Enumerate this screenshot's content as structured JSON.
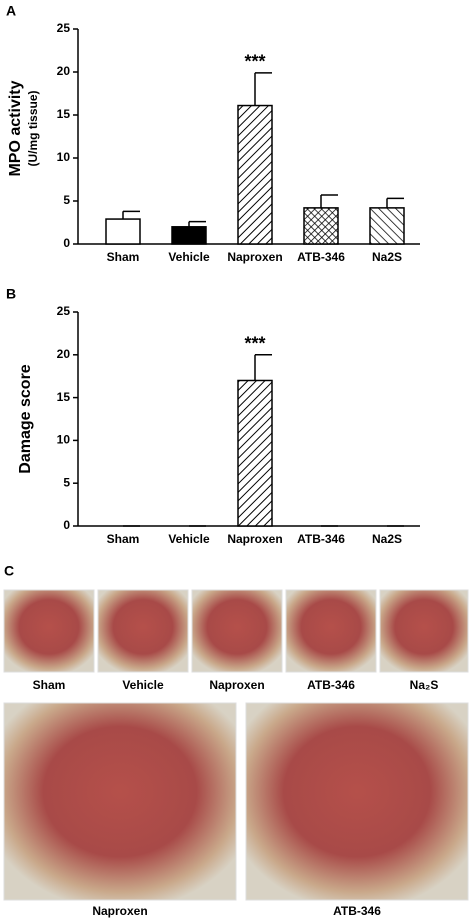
{
  "chart_data": [
    {
      "type": "bar",
      "panel": "A",
      "y_label": "MPO activity",
      "y_sublabel": "(U/mg tissue)",
      "categories": [
        "Sham",
        "Vehicle",
        "Naproxen",
        "ATB-346",
        "Na2S"
      ],
      "values": [
        2.9,
        2.0,
        16.1,
        4.2,
        4.2
      ],
      "errors": [
        0.9,
        0.6,
        3.8,
        1.5,
        1.1
      ],
      "fills": [
        "white",
        "black",
        "hatch-right",
        "crosshatch",
        "hatch-left"
      ],
      "ylim": [
        0,
        25
      ],
      "yticks": [
        0,
        5,
        10,
        15,
        20,
        25
      ],
      "annotations": [
        {
          "text": "***",
          "x": "Naproxen"
        }
      ]
    },
    {
      "type": "bar",
      "panel": "B",
      "y_label": "Damage score",
      "categories": [
        "Sham",
        "Vehicle",
        "Naproxen",
        "ATB-346",
        "Na2S"
      ],
      "values": [
        0,
        0,
        17,
        0,
        0
      ],
      "errors": [
        0,
        0,
        3,
        0,
        0
      ],
      "fills": [
        "white",
        "white",
        "hatch-right",
        "white",
        "white"
      ],
      "ylim": [
        0,
        25
      ],
      "yticks": [
        0,
        5,
        10,
        15,
        20,
        25
      ],
      "annotations": [
        {
          "text": "***",
          "x": "Naproxen"
        }
      ]
    }
  ],
  "panel_c": {
    "label": "C",
    "top_captions": [
      "Sham",
      "Vehicle",
      "Naproxen",
      "ATB-346",
      "Na₂S"
    ],
    "bottom_captions": [
      "Naproxen",
      "ATB-346"
    ]
  }
}
